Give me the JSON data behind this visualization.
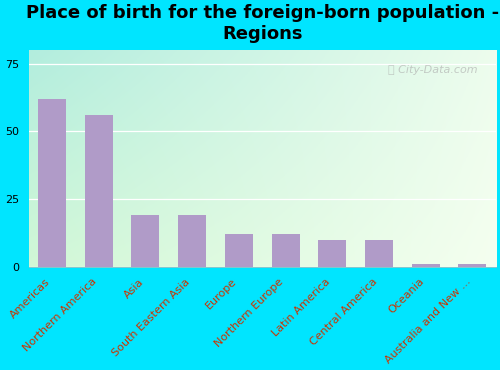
{
  "title": "Place of birth for the foreign-born population -\nRegions",
  "categories": [
    "Americas",
    "Northern America",
    "Asia",
    "South Eastern Asia",
    "Europe",
    "Northern Europe",
    "Latin America",
    "Central America",
    "Oceania",
    "Australia and New ..."
  ],
  "values": [
    62,
    56,
    19,
    19,
    12,
    12,
    10,
    10,
    1,
    1
  ],
  "bar_color": "#b09bc8",
  "bg_color": "#00e5ff",
  "yticks": [
    0,
    25,
    50,
    75
  ],
  "ylim": [
    0,
    80
  ],
  "watermark": "ⓘ City-Data.com",
  "title_fontsize": 13,
  "tick_fontsize": 8,
  "label_color": "#cc3300",
  "gradient_top_left": "#b2dfdb",
  "gradient_top_right": "#e8f5e9",
  "gradient_bottom": "#dcedc8"
}
